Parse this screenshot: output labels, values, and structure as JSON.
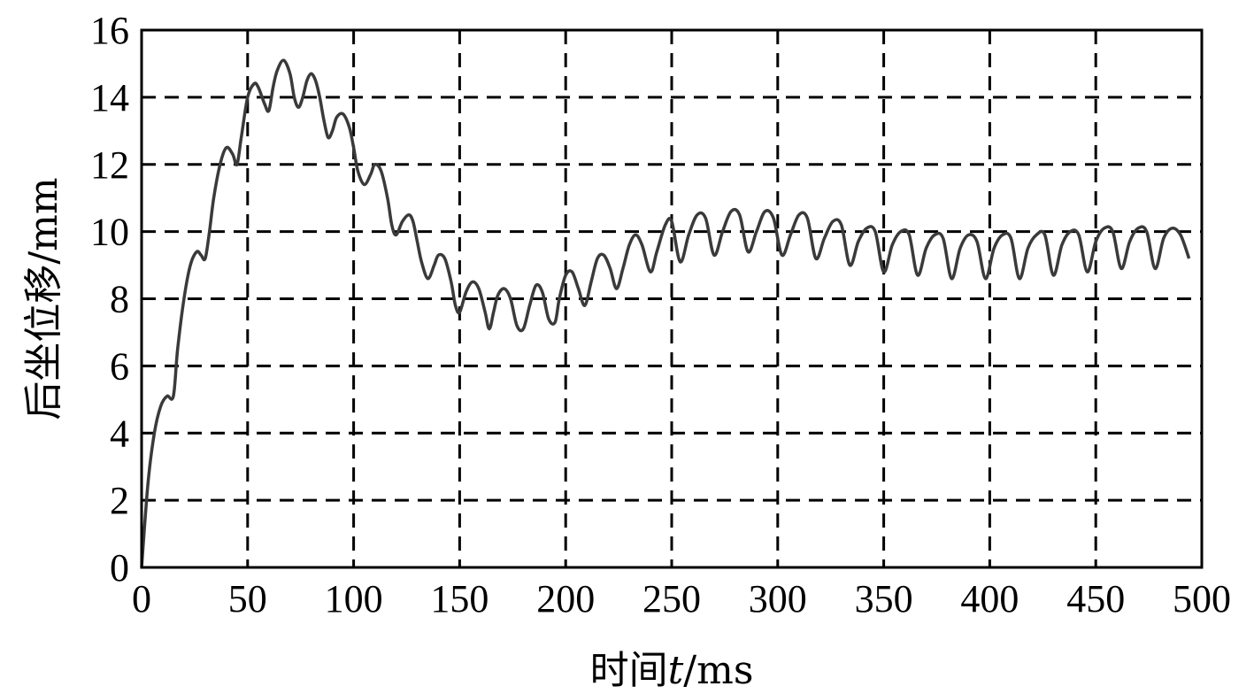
{
  "chart_data": {
    "type": "line",
    "title": "",
    "xlabel_parts": {
      "prefix": "时间",
      "var": "t",
      "unit": "/ms"
    },
    "ylabel": "后坐位移/mm",
    "xlim": [
      0,
      500
    ],
    "ylim": [
      0,
      16
    ],
    "x_ticks": [
      0,
      50,
      100,
      150,
      200,
      250,
      300,
      350,
      400,
      450,
      500
    ],
    "y_ticks": [
      0,
      2,
      4,
      6,
      8,
      10,
      12,
      14,
      16
    ],
    "grid": "dashed",
    "line_color": "#3a3a3a",
    "series": [
      {
        "x": [
          0,
          3,
          6,
          9,
          12,
          15,
          17,
          20,
          23,
          26,
          28,
          30,
          32,
          34,
          37,
          40,
          43,
          45,
          47,
          50,
          53,
          55,
          58,
          60,
          62,
          64,
          67,
          70,
          72,
          74,
          76,
          78,
          80,
          82,
          84,
          86,
          88,
          90,
          92,
          95,
          98,
          100,
          102,
          105,
          108,
          110,
          113,
          116,
          118,
          120,
          123,
          126,
          128,
          130,
          132,
          135,
          138,
          140,
          143,
          146,
          148,
          150,
          153,
          156,
          159,
          162,
          164,
          166,
          168,
          171,
          174,
          177,
          180,
          183,
          186,
          189,
          192,
          195,
          197,
          200,
          203,
          206,
          209,
          212,
          215,
          218,
          221,
          224,
          227,
          230,
          233,
          236,
          240,
          243,
          247,
          250,
          254,
          258,
          262,
          266,
          270,
          274,
          278,
          282,
          286,
          290,
          294,
          298,
          302,
          306,
          310,
          314,
          318,
          322,
          326,
          330,
          334,
          338,
          342,
          346,
          350,
          354,
          358,
          362,
          366,
          370,
          374,
          378,
          382,
          386,
          390,
          394,
          398,
          402,
          406,
          410,
          414,
          418,
          422,
          426,
          430,
          434,
          438,
          442,
          446,
          450,
          454,
          458,
          462,
          466,
          470,
          474,
          478,
          482,
          486,
          490,
          494
        ],
        "y": [
          0,
          2.5,
          4,
          4.8,
          5.1,
          5.1,
          6.5,
          8,
          9,
          9.4,
          9.3,
          9.2,
          10,
          11,
          12,
          12.5,
          12.3,
          12,
          12.8,
          14,
          14.4,
          14.3,
          13.8,
          13.6,
          14.3,
          14.8,
          15.1,
          14.7,
          14,
          13.7,
          14,
          14.5,
          14.7,
          14.5,
          14,
          13.3,
          12.8,
          13,
          13.4,
          13.5,
          13.1,
          12.5,
          11.8,
          11.4,
          11.7,
          12,
          11.8,
          11,
          10.2,
          9.9,
          10.3,
          10.5,
          10.3,
          9.7,
          9.1,
          8.6,
          9,
          9.3,
          9.2,
          8.5,
          7.8,
          7.6,
          8.2,
          8.5,
          8.3,
          7.6,
          7.1,
          7.6,
          8.1,
          8.3,
          8.0,
          7.2,
          7.1,
          7.8,
          8.4,
          8.2,
          7.4,
          7.3,
          8.0,
          8.7,
          8.8,
          8.3,
          7.8,
          8.5,
          9.2,
          9.3,
          8.9,
          8.3,
          8.9,
          9.6,
          9.9,
          9.6,
          8.8,
          9.4,
          10.2,
          10.3,
          9.1,
          9.9,
          10.5,
          10.4,
          9.3,
          10.0,
          10.6,
          10.5,
          9.4,
          10.0,
          10.6,
          10.4,
          9.3,
          9.9,
          10.5,
          10.4,
          9.2,
          9.8,
          10.3,
          10.2,
          9.0,
          9.7,
          10.1,
          10.0,
          8.8,
          9.6,
          10.0,
          9.9,
          8.7,
          9.5,
          9.9,
          9.8,
          8.6,
          9.5,
          9.9,
          9.7,
          8.6,
          9.5,
          9.9,
          9.8,
          8.6,
          9.5,
          9.9,
          9.9,
          8.7,
          9.6,
          10.0,
          9.9,
          8.8,
          9.7,
          10.1,
          10.0,
          8.9,
          9.7,
          10.1,
          10.0,
          8.9,
          9.8,
          10.1,
          9.9,
          9.2
        ]
      }
    ]
  }
}
